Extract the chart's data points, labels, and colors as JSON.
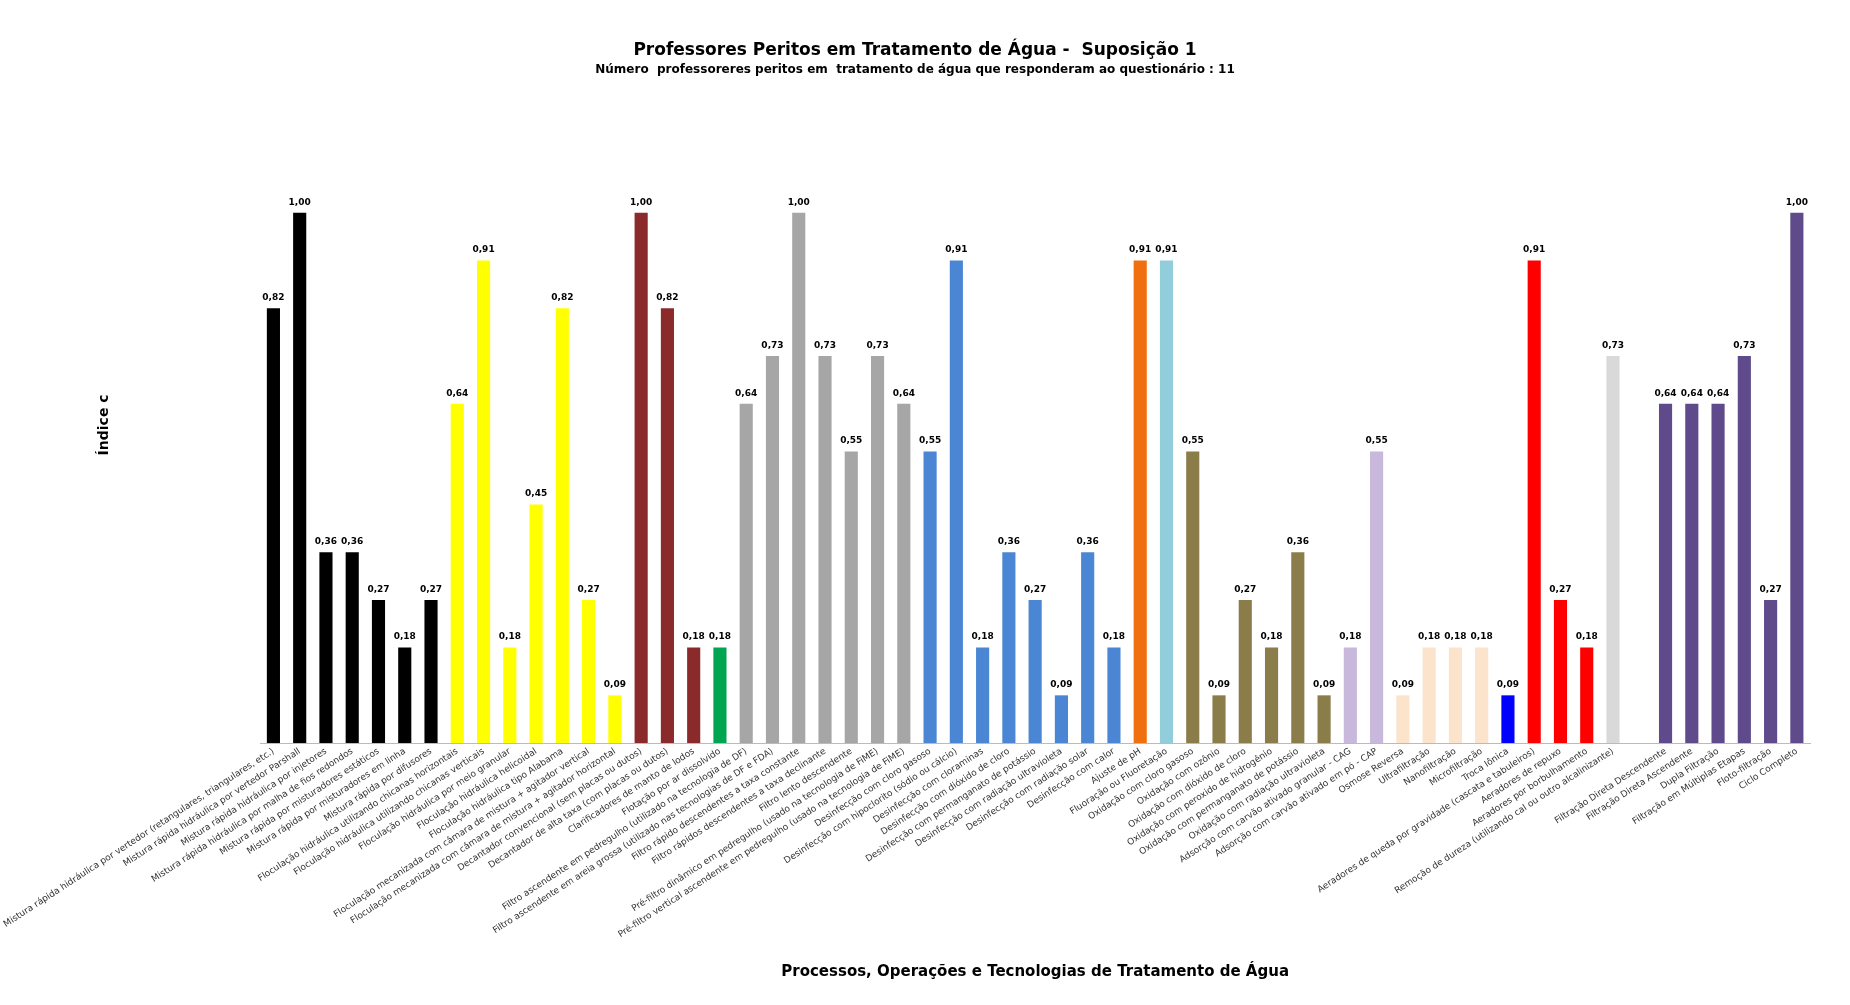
{
  "chart_data": {
    "type": "bar",
    "title": "Professores Peritos em Tratamento de Água -  Suposição 1",
    "subtitle": "Número  professoreres peritos em  tratamento de água que responderam ao questionário : 11",
    "xlabel": "Processos, Operações e Tecnologias de Tratamento de Água",
    "ylabel": "Índice c",
    "tick_labels": "x",
    "categories": [
      "Mistura rápida hidráulica por vertedor (retangulares, triangulares, etc.)",
      "Mistura rápida hidráulica por vertedor Parshall",
      "Mistura rápida hidráulica por injetores",
      "Mistura rápida hidráulica por malha de fios redondos",
      "Mistura rápida por misturadores estáticos",
      "Mistura rápida por misturadores em linha",
      "Mistura rápida por difusores",
      "Floculação hidráulica utilizando chicanas horizontais",
      "Floculação hidráulica utilizando chicanas verticais",
      "Floculação hidráulica por meio granular",
      "Floculação hidráulica helicoidal",
      "Floculação hidráulica tipo Alabama",
      "Floculação mecanizada com câmara de mistura + agitador vertical",
      "Floculação mecanizada com câmara de mistura + agitador horizontal",
      "Decantador convencional (sem placas ou dutos)",
      "Decantador de alta taxa (com placas ou dutos)",
      "Clarificadores de manto de lodos",
      "Flotação por ar dissolvido",
      "Filtro ascendente em pedregulho (utilizado na tecnologia de DF)",
      "Filtro ascendente em areia grossa (utilizado nas tecnologias de DF e FDA)",
      "Filtro rápido descendentes a taxa constante",
      "Filtro rápidos descendentes a taxa declinante",
      "Filtro lento descendente",
      "Pré-filtro dinâmico em pedregulho (usado na tecnologia de FiME)",
      "Pré-filtro vertical ascendente em pedregulho (usado na tecnologia de FiME)",
      "Desinfecção com cloro gasoso",
      "Desinfecção com hipoclorito (sódio ou cálcio)",
      "Desinfecção com cloraminas",
      "Desinfecção com dióxido de cloro",
      "Desinfecção com permanganato de potássio",
      "Desinfecção com radiação ultravioleta",
      "Desinfecção com radiação solar",
      "Desinfecção com calor",
      "Ajuste de pH",
      "Fluoração ou Fluoretação",
      "Oxidação com cloro gasoso",
      "Oxidação com ozônio",
      "Oxidação com dióxido de cloro",
      "Oxidação com peroxido de hidrogênio",
      "Oxidação com permanganato de potássio",
      "Oxidação com radiação ultravioleta",
      "Adsorção com carvão ativado granular - CAG",
      "Adsorção com carvão ativado em pó - CAP",
      "Osmose Reversa",
      "Ultrafiltração",
      "Nanofiltração",
      "Microfiltração",
      "Troca Iônica",
      "Aeradores de queda por gravidade (cascata e tabuleiros)",
      "Aeradores de repuxo",
      "Aeradores por borbulhamento",
      "Remoção de dureza (utilizando cal ou outro alcalinizante)",
      null,
      "Filtração Direta Descendente",
      "Filtração Direta Ascendente",
      "Dupla Filtração",
      "Filtração em Múltiplas Etapas",
      "Floto-filtração",
      "Ciclo Completo"
    ],
    "values": [
      0.82,
      1.0,
      0.36,
      0.36,
      0.27,
      0.18,
      0.27,
      0.64,
      0.91,
      0.18,
      0.45,
      0.82,
      0.27,
      0.09,
      1.0,
      0.82,
      0.18,
      0.18,
      0.64,
      0.73,
      1.0,
      0.73,
      0.55,
      0.73,
      0.64,
      0.55,
      0.91,
      0.18,
      0.36,
      0.27,
      0.09,
      0.36,
      0.18,
      0.91,
      0.91,
      0.55,
      0.09,
      0.27,
      0.18,
      0.36,
      0.09,
      0.18,
      0.55,
      0.09,
      0.18,
      0.18,
      0.18,
      0.09,
      0.91,
      0.27,
      0.18,
      0.73,
      null,
      0.64,
      0.64,
      0.64,
      0.73,
      0.27,
      1.0
    ],
    "value_labels": [
      "0,82",
      "1,00",
      "0,36",
      "0,36",
      "0,27",
      "0,18",
      "0,27",
      "0,64",
      "0,91",
      "0,18",
      "0,45",
      "0,82",
      "0,27",
      "0,09",
      "1,00",
      "0,82",
      "0,18",
      "0,18",
      "0,64",
      "0,73",
      "1,00",
      "0,73",
      "0,55",
      "0,73",
      "0,64",
      "0,55",
      "0,91",
      "0,18",
      "0,36",
      "0,27",
      "0,09",
      "0,36",
      "0,18",
      "0,91",
      "0,91",
      "0,55",
      "0,09",
      "0,27",
      "0,18",
      "0,36",
      "0,09",
      "0,18",
      "0,55",
      "0,09",
      "0,18",
      "0,18",
      "0,18",
      "0,09",
      "0,91",
      "0,27",
      "0,18",
      "0,73",
      null,
      "0,64",
      "0,64",
      "0,64",
      "0,73",
      "0,27",
      "1,00"
    ],
    "colors": [
      "#000000",
      "#000000",
      "#000000",
      "#000000",
      "#000000",
      "#000000",
      "#000000",
      "#ffff00",
      "#ffff00",
      "#ffff00",
      "#ffff00",
      "#ffff00",
      "#ffff00",
      "#ffff00",
      "#8b2a2a",
      "#8b2a2a",
      "#8b2a2a",
      "#00a550",
      "#a6a6a6",
      "#a6a6a6",
      "#a6a6a6",
      "#a6a6a6",
      "#a6a6a6",
      "#a6a6a6",
      "#a6a6a6",
      "#4a86d4",
      "#4a86d4",
      "#4a86d4",
      "#4a86d4",
      "#4a86d4",
      "#4a86d4",
      "#4a86d4",
      "#4a86d4",
      "#f07010",
      "#92cddc",
      "#8a7d4a",
      "#8a7d4a",
      "#8a7d4a",
      "#8a7d4a",
      "#8a7d4a",
      "#8a7d4a",
      "#c8b8dc",
      "#c8b8dc",
      "#fce4cc",
      "#fce4cc",
      "#fce4cc",
      "#fce4cc",
      "#0000ff",
      "#ff0000",
      "#ff0000",
      "#ff0000",
      "#d9d9d9",
      null,
      "#5f4b8b",
      "#5f4b8b",
      "#5f4b8b",
      "#5f4b8b",
      "#5f4b8b",
      "#5f4b8b"
    ]
  }
}
